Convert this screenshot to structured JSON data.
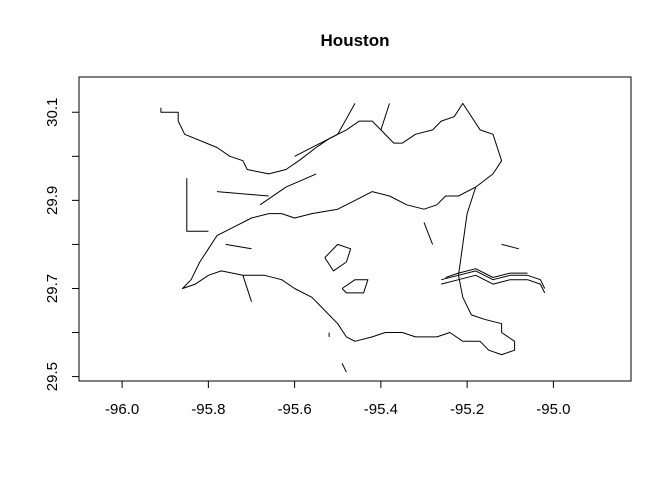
{
  "map": {
    "title": "Houston",
    "x_axis": {
      "range": [
        -96.1,
        -94.82
      ],
      "ticks": [
        -96.0,
        -95.8,
        -95.6,
        -95.4,
        -95.2,
        -95.0
      ],
      "tick_labels": [
        "-96.0",
        "-95.8",
        "-95.6",
        "-95.4",
        "-95.2",
        "-95.0"
      ]
    },
    "y_axis": {
      "range": [
        29.49,
        30.18
      ],
      "ticks": [
        29.5,
        29.7,
        29.9,
        30.1
      ],
      "minor_ticks": [
        29.6,
        29.8,
        30.0
      ],
      "tick_labels": [
        "29.5",
        "29.7",
        "29.9",
        "30.1"
      ]
    },
    "box": true,
    "outline": [
      [
        -95.91,
        30.11
      ],
      [
        -95.91,
        30.1
      ],
      [
        -95.87,
        30.1
      ],
      [
        -95.87,
        30.08
      ],
      [
        -95.855,
        30.05
      ],
      [
        -95.78,
        30.02
      ],
      [
        -95.75,
        30.0
      ],
      [
        -95.72,
        29.99
      ],
      [
        -95.71,
        29.97
      ],
      [
        -95.66,
        29.96
      ],
      [
        -95.62,
        29.97
      ],
      [
        -95.59,
        29.99
      ],
      [
        -95.55,
        30.02
      ],
      [
        -95.52,
        30.04
      ],
      [
        -95.48,
        30.06
      ],
      [
        -95.45,
        30.08
      ],
      [
        -95.42,
        30.08
      ],
      [
        -95.4,
        30.06
      ],
      [
        -95.37,
        30.03
      ],
      [
        -95.35,
        30.03
      ],
      [
        -95.32,
        30.05
      ],
      [
        -95.28,
        30.06
      ],
      [
        -95.26,
        30.08
      ],
      [
        -95.23,
        30.09
      ],
      [
        -95.21,
        30.12
      ],
      [
        -95.17,
        30.06
      ],
      [
        -95.14,
        30.05
      ],
      [
        -95.13,
        30.02
      ],
      [
        -95.12,
        29.99
      ],
      [
        -95.14,
        29.96
      ],
      [
        -95.18,
        29.93
      ],
      [
        -95.2,
        29.87
      ],
      [
        -95.21,
        29.8
      ],
      [
        -95.22,
        29.73
      ],
      [
        -95.21,
        29.68
      ],
      [
        -95.19,
        29.64
      ],
      [
        -95.16,
        29.63
      ],
      [
        -95.12,
        29.62
      ],
      [
        -95.12,
        29.6
      ],
      [
        -95.09,
        29.58
      ],
      [
        -95.09,
        29.56
      ],
      [
        -95.12,
        29.55
      ],
      [
        -95.15,
        29.56
      ],
      [
        -95.17,
        29.58
      ],
      [
        -95.21,
        29.58
      ],
      [
        -95.24,
        29.6
      ],
      [
        -95.27,
        29.59
      ],
      [
        -95.32,
        29.59
      ],
      [
        -95.35,
        29.6
      ],
      [
        -95.39,
        29.6
      ],
      [
        -95.42,
        29.59
      ],
      [
        -95.46,
        29.58
      ],
      [
        -95.48,
        29.59
      ],
      [
        -95.5,
        29.62
      ],
      [
        -95.53,
        29.65
      ],
      [
        -95.56,
        29.68
      ],
      [
        -95.6,
        29.7
      ],
      [
        -95.63,
        29.72
      ],
      [
        -95.67,
        29.73
      ],
      [
        -95.72,
        29.73
      ],
      [
        -95.77,
        29.74
      ],
      [
        -95.8,
        29.73
      ],
      [
        -95.83,
        29.71
      ],
      [
        -95.86,
        29.7
      ],
      [
        -95.84,
        29.72
      ],
      [
        -95.82,
        29.76
      ],
      [
        -95.8,
        29.79
      ],
      [
        -95.78,
        29.82
      ],
      [
        -95.74,
        29.84
      ],
      [
        -95.7,
        29.86
      ],
      [
        -95.66,
        29.87
      ],
      [
        -95.63,
        29.87
      ],
      [
        -95.6,
        29.86
      ],
      [
        -95.56,
        29.87
      ],
      [
        -95.5,
        29.88
      ],
      [
        -95.46,
        29.9
      ],
      [
        -95.42,
        29.92
      ],
      [
        -95.38,
        29.91
      ],
      [
        -95.34,
        29.89
      ],
      [
        -95.3,
        29.88
      ],
      [
        -95.27,
        29.89
      ],
      [
        -95.25,
        29.91
      ],
      [
        -95.22,
        29.91
      ],
      [
        -95.18,
        29.93
      ]
    ],
    "inner_holes": [
      [
        [
          -95.53,
          29.77
        ],
        [
          -95.5,
          29.8
        ],
        [
          -95.47,
          29.79
        ],
        [
          -95.48,
          29.76
        ],
        [
          -95.51,
          29.74
        ],
        [
          -95.53,
          29.77
        ]
      ],
      [
        [
          -95.49,
          29.7
        ],
        [
          -95.46,
          29.72
        ],
        [
          -95.43,
          29.72
        ],
        [
          -95.44,
          29.69
        ],
        [
          -95.48,
          29.69
        ],
        [
          -95.49,
          29.7
        ]
      ]
    ],
    "channel": [
      [
        [
          -95.26,
          29.72
        ],
        [
          -95.22,
          29.73
        ],
        [
          -95.18,
          29.74
        ],
        [
          -95.14,
          29.72
        ],
        [
          -95.1,
          29.73
        ],
        [
          -95.06,
          29.73
        ],
        [
          -95.03,
          29.72
        ],
        [
          -95.02,
          29.7
        ]
      ],
      [
        [
          -95.26,
          29.71
        ],
        [
          -95.22,
          29.72
        ],
        [
          -95.18,
          29.73
        ],
        [
          -95.14,
          29.71
        ],
        [
          -95.1,
          29.72
        ],
        [
          -95.06,
          29.72
        ],
        [
          -95.03,
          29.71
        ],
        [
          -95.02,
          29.69
        ]
      ],
      [
        [
          -95.25,
          29.725
        ],
        [
          -95.22,
          29.735
        ],
        [
          -95.18,
          29.745
        ],
        [
          -95.14,
          29.725
        ],
        [
          -95.1,
          29.735
        ],
        [
          -95.06,
          29.735
        ]
      ]
    ],
    "spurs": [
      [
        [
          -95.85,
          29.95
        ],
        [
          -95.85,
          29.83
        ],
        [
          -95.8,
          29.83
        ]
      ],
      [
        [
          -95.6,
          30.0
        ],
        [
          -95.5,
          30.05
        ],
        [
          -95.46,
          30.12
        ]
      ],
      [
        [
          -95.4,
          30.06
        ],
        [
          -95.38,
          30.12
        ]
      ],
      [
        [
          -95.12,
          29.8
        ],
        [
          -95.08,
          29.79
        ]
      ],
      [
        [
          -95.3,
          29.85
        ],
        [
          -95.28,
          29.8
        ]
      ],
      [
        [
          -95.68,
          29.89
        ],
        [
          -95.62,
          29.93
        ],
        [
          -95.55,
          29.96
        ]
      ],
      [
        [
          -95.78,
          29.92
        ],
        [
          -95.66,
          29.91
        ]
      ],
      [
        [
          -95.76,
          29.8
        ],
        [
          -95.7,
          29.79
        ]
      ],
      [
        [
          -95.72,
          29.73
        ],
        [
          -95.7,
          29.67
        ]
      ],
      [
        [
          -95.52,
          29.6
        ],
        [
          -95.52,
          29.59
        ]
      ],
      [
        [
          -95.49,
          29.53
        ],
        [
          -95.48,
          29.51
        ]
      ]
    ]
  }
}
